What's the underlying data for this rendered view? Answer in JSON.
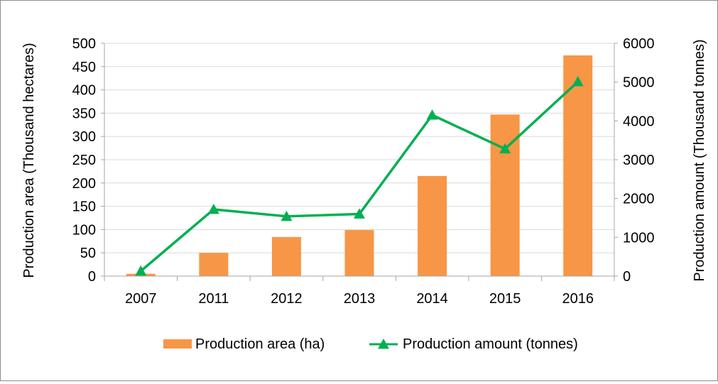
{
  "chart_data": {
    "type": "bar+line",
    "categories": [
      "2007",
      "2011",
      "2012",
      "2013",
      "2014",
      "2015",
      "2016"
    ],
    "series": [
      {
        "name": "Production area (ha)",
        "type": "bar",
        "axis": "left",
        "values": [
          5,
          50,
          84,
          99,
          215,
          347,
          474
        ]
      },
      {
        "name": "Production amount (tonnes)",
        "type": "line",
        "axis": "right",
        "marker": "triangle",
        "values": [
          130,
          1720,
          1540,
          1600,
          4150,
          3280,
          5010
        ]
      }
    ],
    "ylabel_left": "Production area  (Thousand hectares)",
    "ylabel_right": "Production amount (Thousand tonnes)",
    "ylim_left": [
      0,
      500
    ],
    "ylim_right": [
      0,
      6000
    ],
    "yticks_left": [
      0,
      50,
      100,
      150,
      200,
      250,
      300,
      350,
      400,
      450,
      500
    ],
    "yticks_right": [
      0,
      1000,
      2000,
      3000,
      4000,
      5000,
      6000
    ],
    "grid": true,
    "legend_position": "bottom",
    "colors": {
      "bar": "#F79646",
      "line": "#00B050",
      "grid": "#d9d9d9",
      "axis": "#a6a6a6"
    }
  }
}
